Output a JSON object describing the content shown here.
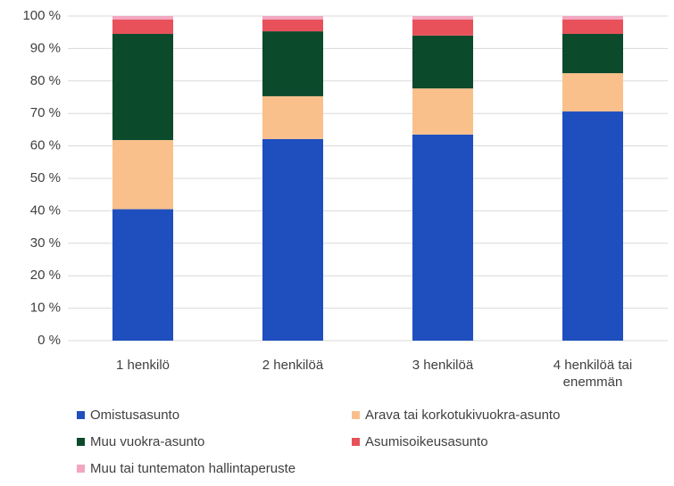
{
  "chart_data": {
    "type": "stacked-bar",
    "categories": [
      "1 henkilö",
      "2 henkilöä",
      "3 henkilöä",
      "4 henkilöä  tai enemmän"
    ],
    "series": [
      {
        "name": "Omistusasunto",
        "color": "#1f4fbf",
        "values": [
          40.5,
          62.1,
          63.5,
          70.6
        ]
      },
      {
        "name": "Arava tai korkotukivuokra-asunto",
        "color": "#f9c08c",
        "values": [
          21.3,
          13.2,
          14.2,
          11.8
        ]
      },
      {
        "name": "Muu vuokra-asunto",
        "color": "#0b4a2b",
        "values": [
          32.7,
          20.0,
          16.3,
          12.1
        ]
      },
      {
        "name": "Asumisoikeusasunto",
        "color": "#e8515a",
        "values": [
          4.4,
          3.6,
          4.9,
          4.4
        ]
      },
      {
        "name": "Muu tai tuntematon hallintaperuste",
        "color": "#f3a6c0",
        "values": [
          1.1,
          1.1,
          1.1,
          1.1
        ]
      }
    ],
    "ylim": [
      0,
      100
    ],
    "yticks": [
      {
        "value": 0,
        "label": "0 %"
      },
      {
        "value": 10,
        "label": "10 %"
      },
      {
        "value": 20,
        "label": "20 %"
      },
      {
        "value": 30,
        "label": "30 %"
      },
      {
        "value": 40,
        "label": "40 %"
      },
      {
        "value": 50,
        "label": "50 %"
      },
      {
        "value": 60,
        "label": "60 %"
      },
      {
        "value": 70,
        "label": "70 %"
      },
      {
        "value": 80,
        "label": "80 %"
      },
      {
        "value": 90,
        "label": "90 %"
      },
      {
        "value": 100,
        "label": "100 %"
      }
    ],
    "grid": true,
    "legend": "bottom"
  }
}
